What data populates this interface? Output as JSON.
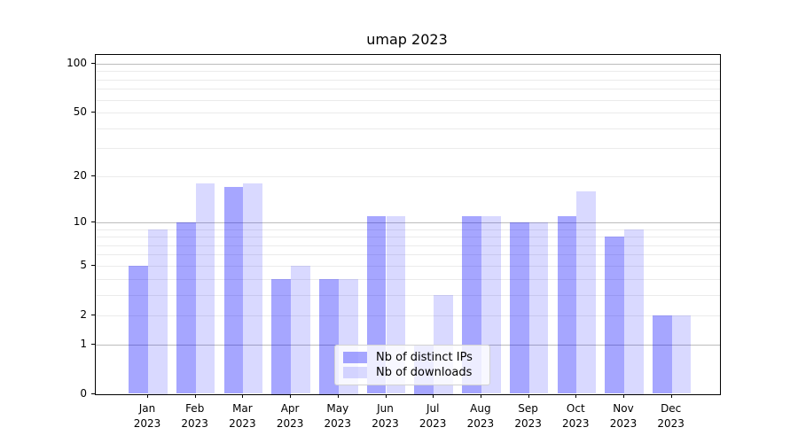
{
  "chart_data": {
    "type": "bar",
    "title": "umap 2023",
    "categories": [
      "Jan",
      "Feb",
      "Mar",
      "Apr",
      "May",
      "Jun",
      "Jul",
      "Aug",
      "Sep",
      "Oct",
      "Nov",
      "Dec"
    ],
    "x_sublabel": "2023",
    "series": [
      {
        "name": "Nb of distinct IPs",
        "color": "rgba(0,0,255,0.35)",
        "values": [
          5,
          10,
          17,
          4,
          4,
          11,
          1,
          11,
          10,
          11,
          8,
          2
        ]
      },
      {
        "name": "Nb of downloads",
        "color": "rgba(0,0,255,0.15)",
        "values": [
          9,
          18,
          18,
          5,
          4,
          11,
          3,
          11,
          10,
          16,
          9,
          2
        ]
      }
    ],
    "xlabel": "",
    "ylabel": "",
    "y_scale": "symlog",
    "y_ticks": [
      0,
      1,
      2,
      5,
      10,
      20,
      50,
      100
    ],
    "y_minor_ticks": [
      2,
      3,
      4,
      5,
      6,
      7,
      8,
      9,
      20,
      30,
      40,
      50,
      60,
      70,
      80,
      90
    ],
    "ylim": [
      0,
      113
    ],
    "grid": "on",
    "legend_position": "lower center",
    "colors": {
      "major_grid": "#bcbcbc",
      "minor_grid": "#ebebeb",
      "axis": "#000000",
      "background": "#ffffff"
    }
  }
}
